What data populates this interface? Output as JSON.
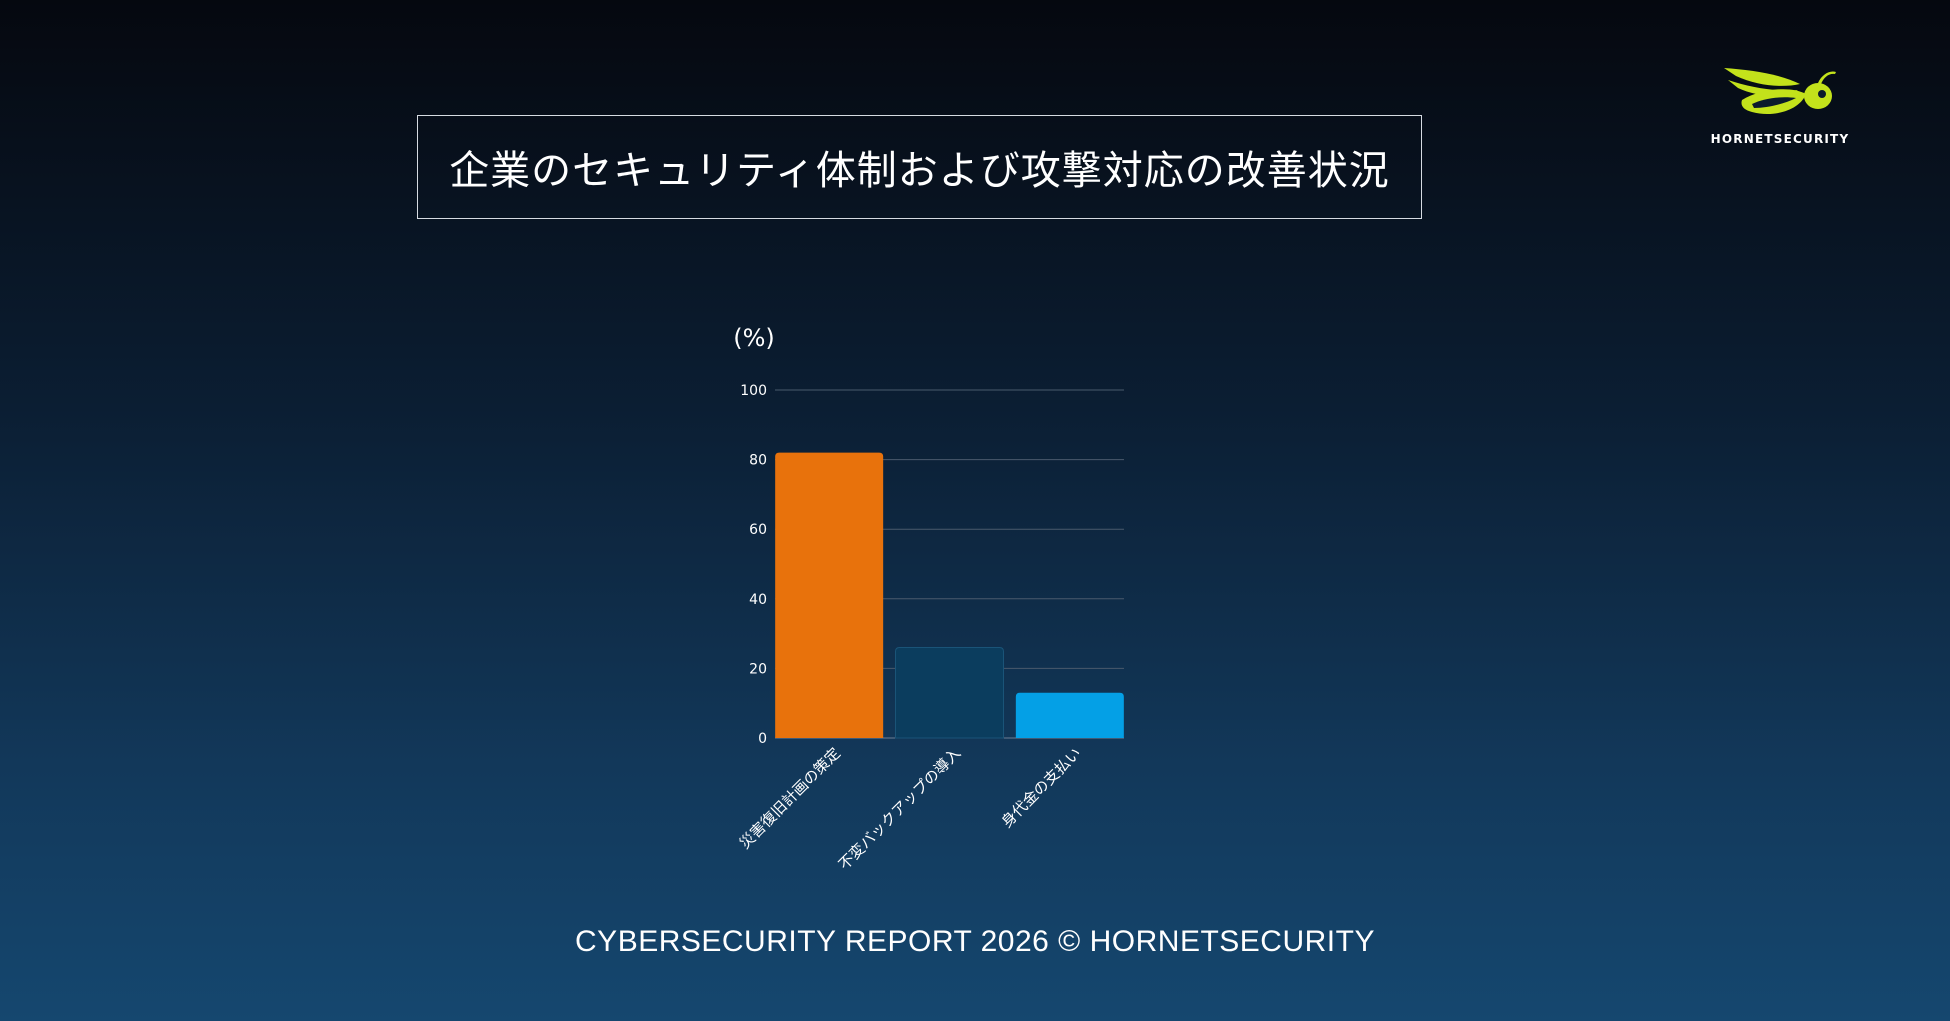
{
  "title": "企業のセキュリティ体制および攻撃対応の改善状況",
  "logo": {
    "text": "HORNETSECURITY",
    "icon": "hornet-icon",
    "color": "#c3e21b"
  },
  "footer": "CYBERSECURITY REPORT 2026 © HORNETSECURITY",
  "chart_data": {
    "type": "bar",
    "ylabel": "(%)",
    "xlabel": "",
    "ylim": [
      0,
      100
    ],
    "yticks": [
      0,
      20,
      40,
      60,
      80,
      100
    ],
    "grid": true,
    "categories": [
      "災害復旧計画の策定",
      "不変バックアップの導入",
      "身代金の支払い"
    ],
    "values": [
      82,
      26,
      13
    ],
    "colors": [
      "#e8720c",
      "#0b3d5e",
      "#04a0e6"
    ]
  }
}
